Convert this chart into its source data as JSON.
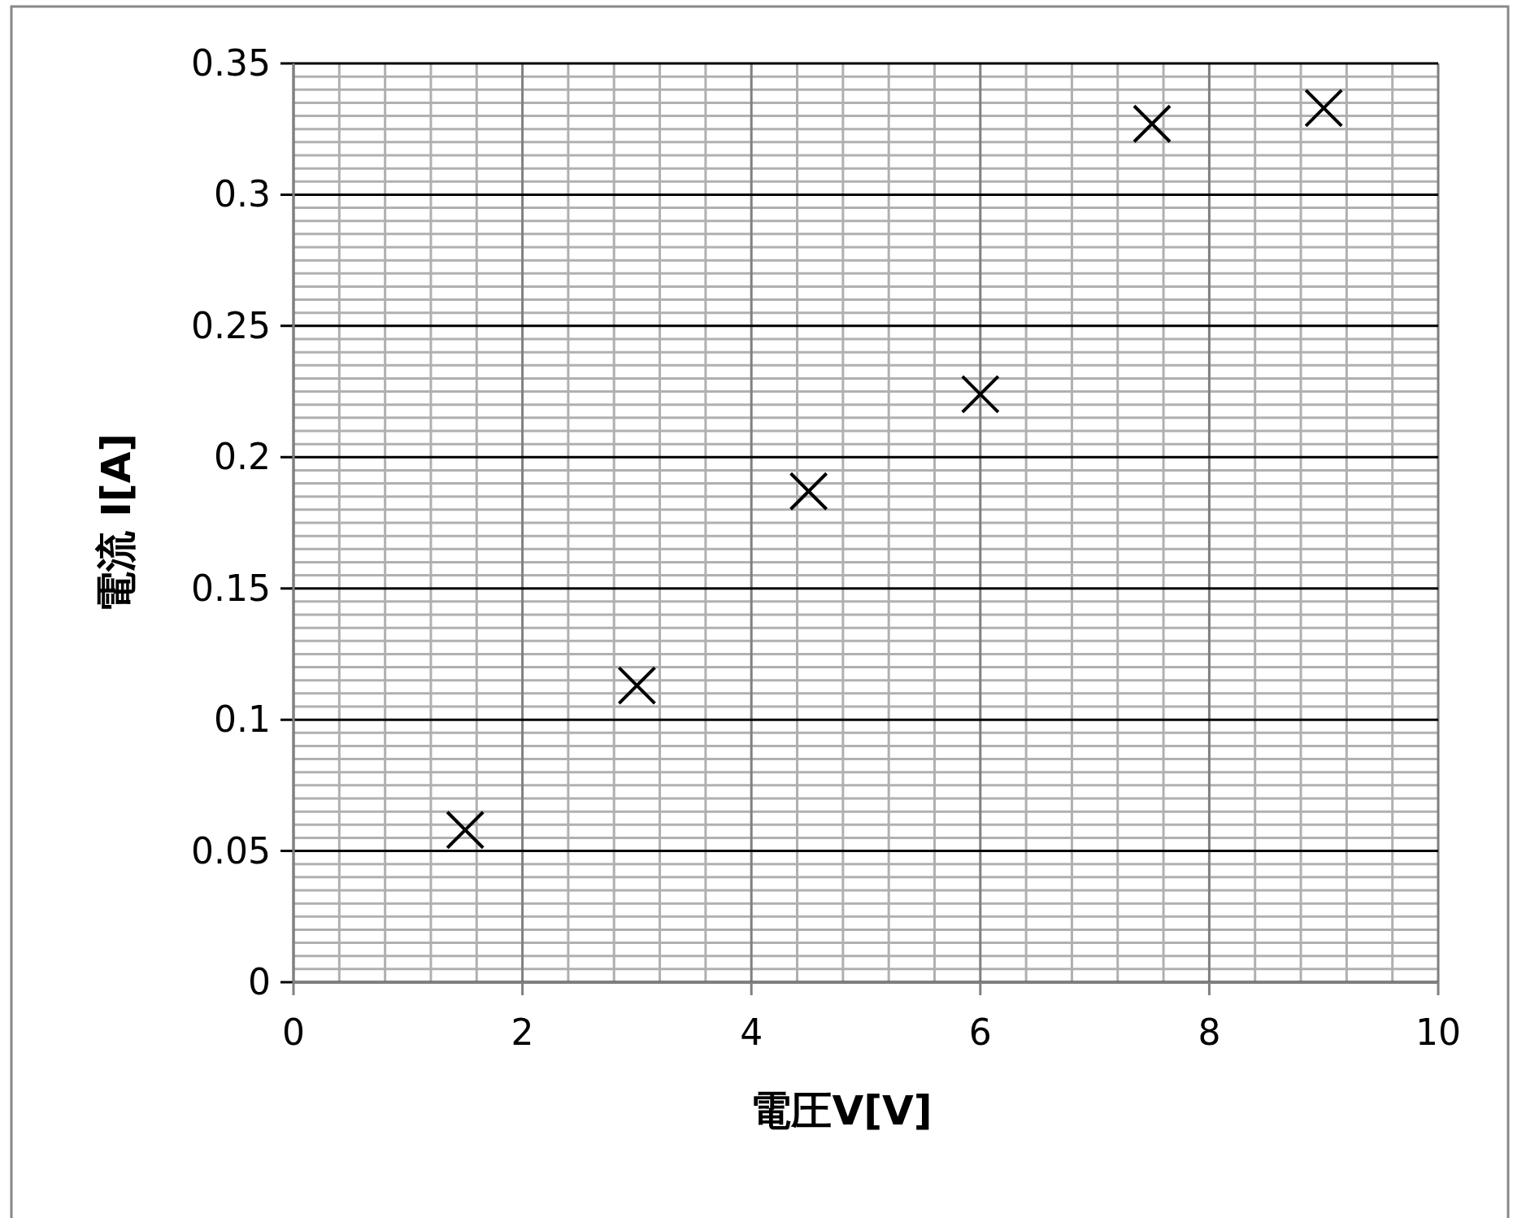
{
  "chart_data": {
    "type": "scatter",
    "xlabel": "電圧V[V]",
    "ylabel": "電流 I[A]",
    "x": [
      1.5,
      3,
      4.5,
      6,
      7.5,
      9
    ],
    "series": [
      {
        "color": "#000000",
        "values": [
          0.058,
          0.113,
          0.187,
          0.224,
          0.327,
          0.333
        ]
      }
    ],
    "xlim": [
      0,
      10
    ],
    "ylim": [
      0,
      0.35
    ],
    "xticks": [
      0,
      2,
      4,
      6,
      8,
      10
    ],
    "yticks": [
      0,
      0.05,
      0.1,
      0.15,
      0.2,
      0.25,
      0.3,
      0.35
    ],
    "grid": true,
    "marker": "cross"
  }
}
